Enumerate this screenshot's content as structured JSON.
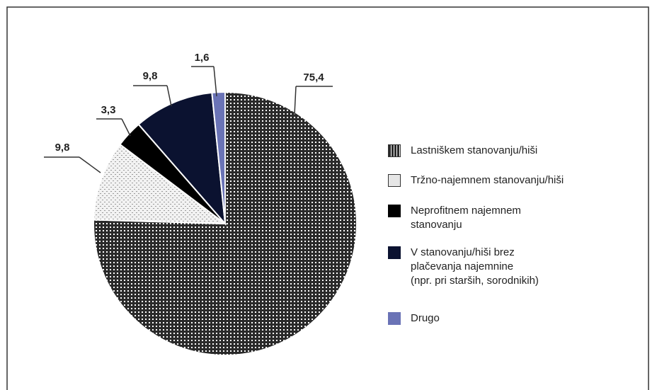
{
  "chart_data": {
    "type": "pie",
    "categories": [
      "Lastniškem stanovanju/hiši",
      "Tržno-najemnem stanovanju/hiši",
      "Neprofitnem najemnem\nstanovanju",
      "V stanovanju/hiši brez\nplačevanja najemnine\n(npr. pri starših, sorodnikih)",
      "Drugo"
    ],
    "values": [
      75.4,
      9.8,
      3.3,
      9.8,
      1.6
    ],
    "value_labels": [
      "75,4",
      "9,8",
      "3,3",
      "9,8",
      "1,6"
    ],
    "colors": [
      "#2a2a2a",
      "#d9d9d9",
      "#000000",
      "#0b1230",
      "#6a73b6"
    ]
  }
}
